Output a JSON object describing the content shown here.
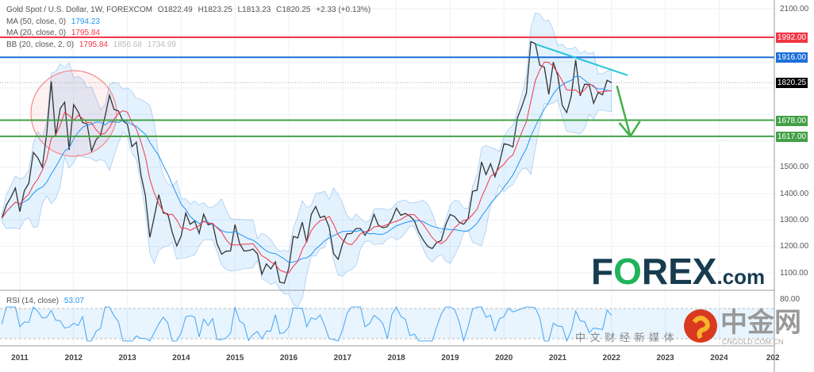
{
  "header": {
    "symbol": "Gold Spot / U.S. Dollar, 1W, FOREXCOM",
    "open": "O1822.49",
    "high": "H1823.25",
    "low": "L1813.23",
    "close": "C1820.25",
    "change": "+2.33 (+0.13%)"
  },
  "indicators": {
    "ma50": {
      "label": "MA (50, close, 0)",
      "value": "1794.23",
      "color": "#2196f3"
    },
    "ma20": {
      "label": "MA (20, close, 0)",
      "value": "1795.84",
      "color": "#f23645"
    },
    "bb": {
      "label": "BB (20, close, 2, 0)",
      "basis": "1795.84",
      "upper": "1856.68",
      "lower": "1734.99"
    },
    "rsi": {
      "label": "RSI (14, close)",
      "value": "53.07"
    }
  },
  "levels": [
    {
      "value": "1992.00",
      "color": "#f23645"
    },
    {
      "value": "1916.00",
      "color": "#1e6fd9"
    },
    {
      "value": "1820.25",
      "color": "#000000"
    },
    {
      "value": "1678.00",
      "color": "#43a047"
    },
    {
      "value": "1617.00",
      "color": "#43a047"
    }
  ],
  "yaxis_ticks": [
    "2100.00",
    "1500.00",
    "1400.00",
    "1300.00",
    "1200.00",
    "1100.00"
  ],
  "rsi_axis_tick": "80.00",
  "xaxis_ticks": [
    "2011",
    "2012",
    "2013",
    "2014",
    "2015",
    "2016",
    "2017",
    "2018",
    "2019",
    "2020",
    "2021",
    "2022",
    "2023",
    "2024",
    "202"
  ],
  "logo": {
    "brand": "FOREX",
    "suffix": ".com"
  },
  "watermark": {
    "name": "中金网",
    "url": "CNGOLD.COM.CN",
    "tagline": "中 文 财 经 新 媒 体"
  },
  "chart_data": {
    "type": "line",
    "title": "Gold Spot / U.S. Dollar, 1W, FOREXCOM",
    "ylim": [
      1000,
      2100
    ],
    "xlim": [
      2010.7,
      2024.9
    ],
    "grid": true,
    "x_start": 2010.667,
    "x_step_months": 1,
    "close": [
      1307,
      1357,
      1386,
      1421,
      1332,
      1411,
      1439,
      1556,
      1536,
      1500,
      1628,
      1825,
      1620,
      1722,
      1746,
      1565,
      1737,
      1710,
      1669,
      1664,
      1561,
      1604,
      1622,
      1692,
      1772,
      1719,
      1713,
      1675,
      1663,
      1578,
      1595,
      1472,
      1393,
      1234,
      1313,
      1396,
      1327,
      1323,
      1253,
      1202,
      1240,
      1326,
      1284,
      1296,
      1250,
      1322,
      1282,
      1287,
      1210,
      1171,
      1182,
      1183,
      1283,
      1212,
      1183,
      1184,
      1190,
      1172,
      1095,
      1134,
      1115,
      1142,
      1065,
      1061,
      1118,
      1238,
      1232,
      1292,
      1215,
      1321,
      1351,
      1309,
      1315,
      1273,
      1173,
      1151,
      1210,
      1248,
      1249,
      1268,
      1268,
      1242,
      1269,
      1322,
      1280,
      1271,
      1275,
      1303,
      1345,
      1318,
      1325,
      1315,
      1298,
      1253,
      1224,
      1200,
      1192,
      1215,
      1222,
      1282,
      1321,
      1313,
      1292,
      1284,
      1305,
      1409,
      1413,
      1520,
      1472,
      1513,
      1464,
      1517,
      1589,
      1585,
      1577,
      1687,
      1730,
      1781,
      1975,
      1968,
      1886,
      1879,
      1776,
      1898,
      1847,
      1734,
      1707,
      1769,
      1906,
      1770,
      1814,
      1813,
      1742,
      1783,
      1774,
      1829,
      1820
    ],
    "horizontal_levels": [
      1992,
      1916,
      1820.25,
      1678,
      1617
    ],
    "trendline": [
      [
        2020.6,
        1965
      ],
      [
        2022.3,
        1848
      ]
    ],
    "arrow_projection": [
      [
        2022.1,
        1808
      ],
      [
        2022.35,
        1617
      ]
    ]
  }
}
